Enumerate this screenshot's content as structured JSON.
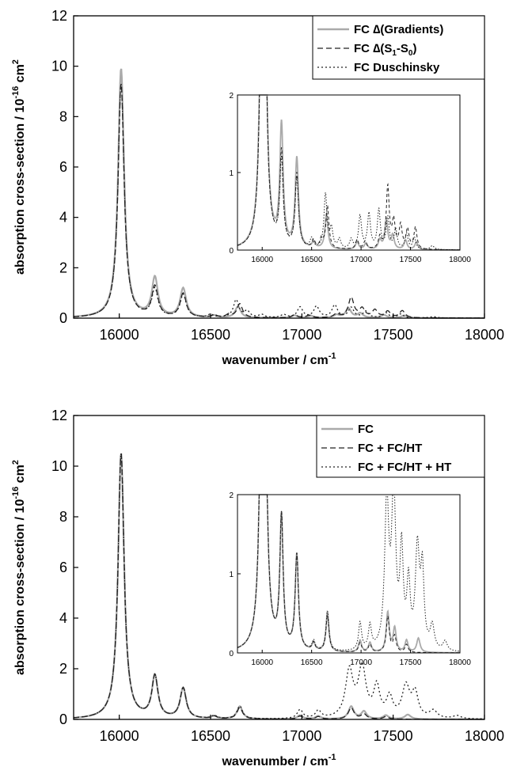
{
  "chart_data": [
    {
      "type": "line",
      "panel": "top",
      "xlabel": "wavenumber / cm",
      "xlabel_sup": "-1",
      "ylabel": "absorption cross-section / 10",
      "ylabel_sup": "-16",
      "ylabel_unit": "cm",
      "ylabel_unit_sup": "2",
      "xlim": [
        15750,
        18000
      ],
      "ylim": [
        0,
        12
      ],
      "xticks": [
        16000,
        16500,
        17000,
        17500,
        18000
      ],
      "yticks": [
        0,
        2,
        4,
        6,
        8,
        10,
        12
      ],
      "legend_position": "top-right",
      "legend_lines": [
        {
          "text": "FC ∆(Gradients)",
          "color": "#aaaaaa",
          "dash": "solid"
        },
        {
          "text": "FC ∆(S",
          "sub": "1",
          "mid": "-S",
          "sub2": "0",
          "tail": ")",
          "color": "#222222",
          "dash": "dashed"
        },
        {
          "text": "FC Duschinsky",
          "color": "#222222",
          "dash": "dotted"
        }
      ],
      "series": [
        {
          "name": "FC ∆(Gradients)",
          "color": "#aaaaaa",
          "dash": "solid",
          "peaks": [
            [
              16010,
              9.9,
              20
            ],
            [
              16195,
              1.55,
              20
            ],
            [
              16350,
              1.15,
              20
            ],
            [
              16520,
              0.08,
              18
            ],
            [
              16650,
              0.45,
              18
            ],
            [
              16960,
              0.1,
              18
            ],
            [
              17050,
              0.08,
              18
            ],
            [
              17190,
              0.12,
              18
            ],
            [
              17255,
              0.38,
              18
            ],
            [
              17320,
              0.18,
              18
            ],
            [
              17450,
              0.12,
              18
            ],
            [
              17560,
              0.1,
              18
            ]
          ]
        },
        {
          "name": "FC ∆(S1-S0)",
          "color": "#222222",
          "dash": "dashed",
          "peaks": [
            [
              16010,
              9.3,
              20
            ],
            [
              16195,
              1.2,
              20
            ],
            [
              16350,
              0.95,
              20
            ],
            [
              16520,
              0.1,
              18
            ],
            [
              16600,
              0.12,
              18
            ],
            [
              16660,
              0.55,
              18
            ],
            [
              16960,
              0.12,
              18
            ],
            [
              17040,
              0.1,
              18
            ],
            [
              17190,
              0.15,
              18
            ],
            [
              17270,
              0.8,
              18
            ],
            [
              17330,
              0.35,
              18
            ],
            [
              17400,
              0.3,
              18
            ],
            [
              17470,
              0.25,
              18
            ],
            [
              17550,
              0.28,
              18
            ]
          ]
        },
        {
          "name": "FC Duschinsky",
          "color": "#222222",
          "dash": "dotted",
          "peaks": [
            [
              16010,
              9.3,
              20
            ],
            [
              16195,
              1.1,
              20
            ],
            [
              16350,
              0.9,
              20
            ],
            [
              16500,
              0.12,
              18
            ],
            [
              16640,
              0.7,
              18
            ],
            [
              16700,
              0.25,
              18
            ],
            [
              16780,
              0.12,
              18
            ],
            [
              16900,
              0.12,
              18
            ],
            [
              16990,
              0.42,
              18
            ],
            [
              17080,
              0.45,
              18
            ],
            [
              17180,
              0.5,
              18
            ],
            [
              17270,
              0.4,
              18
            ],
            [
              17350,
              0.25,
              18
            ],
            [
              17460,
              0.2,
              18
            ],
            [
              17540,
              0.15,
              18
            ],
            [
              17720,
              0.05,
              25
            ]
          ]
        }
      ],
      "inset": {
        "xlim": [
          15750,
          18000
        ],
        "ylim": [
          0,
          2
        ],
        "xticks": [
          16000,
          16500,
          17000,
          17500,
          18000
        ],
        "yticks": [
          0,
          1,
          2
        ]
      }
    },
    {
      "type": "line",
      "panel": "bottom",
      "xlabel": "wavenumber / cm",
      "xlabel_sup": "-1",
      "ylabel": "absorption cross-section / 10",
      "ylabel_sup": "-16",
      "ylabel_unit": "cm",
      "ylabel_unit_sup": "2",
      "xlim": [
        15750,
        18000
      ],
      "ylim": [
        0,
        12
      ],
      "xticks": [
        16000,
        16500,
        17000,
        17500,
        18000
      ],
      "yticks": [
        0,
        2,
        4,
        6,
        8,
        10,
        12
      ],
      "legend_position": "top-right",
      "legend_lines": [
        {
          "text": "FC",
          "color": "#aaaaaa",
          "dash": "solid"
        },
        {
          "text": "FC + FC/HT",
          "color": "#222222",
          "dash": "dashed"
        },
        {
          "text": "FC + FC/HT + HT",
          "color": "#222222",
          "dash": "dotted"
        }
      ],
      "series": [
        {
          "name": "FC",
          "color": "#aaaaaa",
          "dash": "solid",
          "peaks": [
            [
              16010,
              10.5,
              20
            ],
            [
              16195,
              1.65,
              20
            ],
            [
              16350,
              1.2,
              20
            ],
            [
              16520,
              0.1,
              18
            ],
            [
              16660,
              0.5,
              18
            ],
            [
              16990,
              0.15,
              18
            ],
            [
              17090,
              0.12,
              18
            ],
            [
              17270,
              0.5,
              18
            ],
            [
              17340,
              0.3,
              18
            ],
            [
              17460,
              0.15,
              18
            ],
            [
              17580,
              0.18,
              20
            ]
          ]
        },
        {
          "name": "FC + FC/HT",
          "color": "#222222",
          "dash": "dashed",
          "peaks": [
            [
              16010,
              10.5,
              20
            ],
            [
              16195,
              1.65,
              20
            ],
            [
              16350,
              1.2,
              20
            ],
            [
              16520,
              0.1,
              18
            ],
            [
              16660,
              0.45,
              18
            ],
            [
              16990,
              0.12,
              18
            ],
            [
              17090,
              0.1,
              18
            ],
            [
              17270,
              0.45,
              18
            ],
            [
              17340,
              0.2,
              18
            ],
            [
              17460,
              0.1,
              18
            ]
          ]
        },
        {
          "name": "FC + FC/HT + HT",
          "color": "#222222",
          "dash": "dotted",
          "peaks": [
            [
              16010,
              10.5,
              20
            ],
            [
              16195,
              1.65,
              20
            ],
            [
              16350,
              1.2,
              20
            ],
            [
              16520,
              0.12,
              18
            ],
            [
              16660,
              0.5,
              18
            ],
            [
              16990,
              0.35,
              18
            ],
            [
              17090,
              0.3,
              18
            ],
            [
              17260,
              1.85,
              25
            ],
            [
              17330,
              1.95,
              25
            ],
            [
              17410,
              1.2,
              20
            ],
            [
              17480,
              0.8,
              20
            ],
            [
              17570,
              1.25,
              25
            ],
            [
              17620,
              0.95,
              20
            ],
            [
              17720,
              0.3,
              25
            ],
            [
              17850,
              0.12,
              25
            ]
          ]
        }
      ],
      "inset": {
        "xlim": [
          15750,
          18000
        ],
        "ylim": [
          0,
          2
        ],
        "xticks": [
          16000,
          16500,
          17000,
          17500,
          18000
        ],
        "yticks": [
          0,
          1,
          2
        ]
      }
    }
  ]
}
